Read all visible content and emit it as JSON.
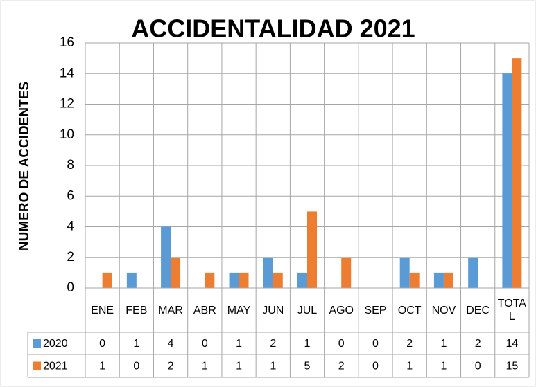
{
  "chart_data": {
    "type": "bar",
    "title": "ACCIDENTALIDAD 2021",
    "y_label": "NUMERO DE ACCIDENTES",
    "categories": [
      "ENE",
      "FEB",
      "MAR",
      "ABR",
      "MAY",
      "JUN",
      "JUL",
      "AGO",
      "SEP",
      "OCT",
      "NOV",
      "DEC",
      "TOTAL"
    ],
    "series": [
      {
        "name": "2020",
        "color": "#5b9bd5",
        "values": [
          0,
          1,
          4,
          0,
          1,
          2,
          1,
          0,
          0,
          2,
          1,
          2,
          14
        ]
      },
      {
        "name": "2021",
        "color": "#ed7d31",
        "values": [
          1,
          0,
          2,
          1,
          1,
          1,
          5,
          2,
          0,
          1,
          1,
          0,
          15
        ]
      }
    ],
    "ylim": [
      0,
      16
    ],
    "yticks": [
      0,
      2,
      4,
      6,
      8,
      10,
      12,
      14,
      16
    ],
    "grid": true
  }
}
